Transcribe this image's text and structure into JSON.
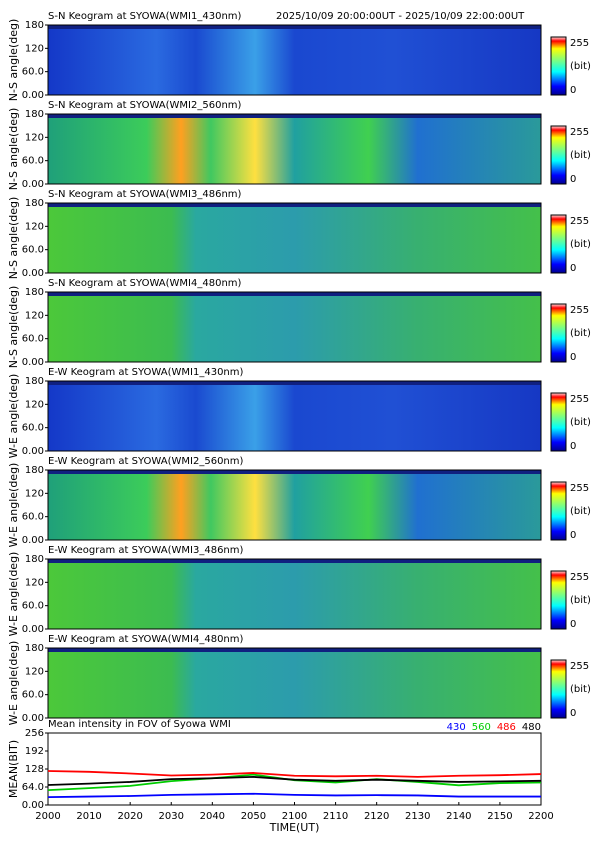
{
  "header": {
    "time_range": "2025/10/09 20:00:00UT - 2025/10/09 22:00:00UT"
  },
  "chart_data": [
    {
      "type": "heatmap",
      "title": "S-N Keogram at SYOWA(WMI1_430nm)",
      "ylabel": "N-S angle(deg)",
      "ylim": [
        0,
        180
      ],
      "yticks": [
        {
          "value": 0,
          "label": "0.00"
        },
        {
          "value": 60,
          "label": "60.0"
        },
        120,
        180
      ],
      "colorbar": {
        "ticks": [
          255,
          0
        ],
        "label": "(bit)"
      }
    },
    {
      "type": "heatmap",
      "title": "S-N Keogram at SYOWA(WMI2_560nm)",
      "ylabel": "N-S angle(deg)",
      "ylim": [
        0,
        180
      ],
      "yticks": [
        {
          "value": 0,
          "label": "0.00"
        },
        {
          "value": 60,
          "label": "60.0"
        },
        120,
        180
      ],
      "colorbar": {
        "ticks": [
          255,
          0
        ],
        "label": "(bit)"
      }
    },
    {
      "type": "heatmap",
      "title": "S-N Keogram at SYOWA(WMI3_486nm)",
      "ylabel": "N-S angle(deg)",
      "ylim": [
        0,
        180
      ],
      "yticks": [
        {
          "value": 0,
          "label": "0.00"
        },
        {
          "value": 60,
          "label": "60.0"
        },
        120,
        180
      ],
      "colorbar": {
        "ticks": [
          255,
          0
        ],
        "label": "(bit)"
      }
    },
    {
      "type": "heatmap",
      "title": "S-N Keogram at SYOWA(WMI4_480nm)",
      "ylabel": "N-S angle(deg)",
      "ylim": [
        0,
        180
      ],
      "yticks": [
        {
          "value": 0,
          "label": "0.00"
        },
        {
          "value": 60,
          "label": "60.0"
        },
        120,
        180
      ],
      "colorbar": {
        "ticks": [
          255,
          0
        ],
        "label": "(bit)"
      }
    },
    {
      "type": "heatmap",
      "title": "E-W Keogram at SYOWA(WMI1_430nm)",
      "ylabel": "W-E angle(deg)",
      "ylim": [
        0,
        180
      ],
      "yticks": [
        {
          "value": 0,
          "label": "0.00"
        },
        {
          "value": 60,
          "label": "60.0"
        },
        120,
        180
      ],
      "colorbar": {
        "ticks": [
          255,
          0
        ],
        "label": "(bit)"
      }
    },
    {
      "type": "heatmap",
      "title": "E-W Keogram at SYOWA(WMI2_560nm)",
      "ylabel": "W-E angle(deg)",
      "ylim": [
        0,
        180
      ],
      "yticks": [
        {
          "value": 0,
          "label": "0.00"
        },
        {
          "value": 60,
          "label": "60.0"
        },
        120,
        180
      ],
      "colorbar": {
        "ticks": [
          255,
          0
        ],
        "label": "(bit)"
      }
    },
    {
      "type": "heatmap",
      "title": "E-W Keogram at SYOWA(WMI3_486nm)",
      "ylabel": "W-E angle(deg)",
      "ylim": [
        0,
        180
      ],
      "yticks": [
        {
          "value": 0,
          "label": "0.00"
        },
        {
          "value": 60,
          "label": "60.0"
        },
        120,
        180
      ],
      "colorbar": {
        "ticks": [
          255,
          0
        ],
        "label": "(bit)"
      }
    },
    {
      "type": "heatmap",
      "title": "E-W Keogram at SYOWA(WMI4_480nm)",
      "ylabel": "W-E angle(deg)",
      "ylim": [
        0,
        180
      ],
      "yticks": [
        {
          "value": 0,
          "label": "0.00"
        },
        {
          "value": 60,
          "label": "60.0"
        },
        120,
        180
      ],
      "colorbar": {
        "ticks": [
          255,
          0
        ],
        "label": "(bit)"
      }
    },
    {
      "type": "line",
      "title": "Mean intensity in FOV of Syowa WMI",
      "ylabel": "MEAN(BIT)",
      "xlabel": "TIME(UT)",
      "x": [
        0,
        10,
        20,
        30,
        40,
        50,
        60,
        70,
        80,
        90,
        100,
        110,
        120
      ],
      "xlim": [
        0,
        120
      ],
      "xticks": [
        {
          "value": 0,
          "label": "2000"
        },
        {
          "value": 10,
          "label": "2010"
        },
        {
          "value": 20,
          "label": "2020"
        },
        {
          "value": 30,
          "label": "2030"
        },
        {
          "value": 40,
          "label": "2040"
        },
        {
          "value": 50,
          "label": "2050"
        },
        {
          "value": 60,
          "label": "2100"
        },
        {
          "value": 70,
          "label": "2110"
        },
        {
          "value": 80,
          "label": "2120"
        },
        {
          "value": 90,
          "label": "2130"
        },
        {
          "value": 100,
          "label": "2140"
        },
        {
          "value": 110,
          "label": "2150"
        },
        {
          "value": 120,
          "label": "2200"
        }
      ],
      "ylim": [
        0,
        256
      ],
      "yticks": [
        {
          "value": 0,
          "label": "0.00"
        },
        {
          "value": 64,
          "label": "64.0"
        },
        128,
        192,
        256
      ],
      "series": [
        {
          "name": "430",
          "color": "#0000ff",
          "values": [
            28,
            30,
            32,
            36,
            38,
            40,
            36,
            34,
            35,
            34,
            30,
            30,
            30
          ]
        },
        {
          "name": "560",
          "color": "#00cc00",
          "values": [
            53,
            60,
            68,
            85,
            95,
            108,
            88,
            80,
            92,
            82,
            70,
            78,
            80
          ]
        },
        {
          "name": "486",
          "color": "#ff0000",
          "values": [
            121,
            118,
            112,
            105,
            108,
            114,
            104,
            102,
            104,
            100,
            104,
            106,
            110
          ]
        },
        {
          "name": "480",
          "color": "#000000",
          "values": [
            71,
            76,
            82,
            92,
            95,
            100,
            90,
            86,
            90,
            86,
            82,
            84,
            86
          ]
        }
      ]
    }
  ]
}
